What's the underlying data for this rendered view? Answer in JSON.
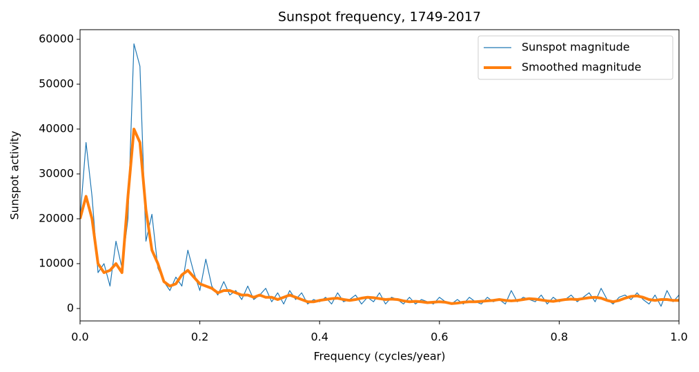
{
  "chart_data": {
    "type": "line",
    "title": "Sunspot frequency, 1749-2017",
    "x_label": "Frequency (cycles/year)",
    "y_label": "Sunspot activity",
    "x": [
      0.0,
      0.01,
      0.02,
      0.03,
      0.04,
      0.05,
      0.06,
      0.07,
      0.08,
      0.09,
      0.1,
      0.11,
      0.12,
      0.13,
      0.14,
      0.15,
      0.16,
      0.17,
      0.18,
      0.19,
      0.2,
      0.21,
      0.22,
      0.23,
      0.24,
      0.25,
      0.26,
      0.27,
      0.28,
      0.29,
      0.3,
      0.31,
      0.32,
      0.33,
      0.34,
      0.35,
      0.36,
      0.37,
      0.38,
      0.39,
      0.4,
      0.41,
      0.42,
      0.43,
      0.44,
      0.45,
      0.46,
      0.47,
      0.48,
      0.49,
      0.5,
      0.51,
      0.52,
      0.53,
      0.54,
      0.55,
      0.56,
      0.57,
      0.58,
      0.59,
      0.6,
      0.61,
      0.62,
      0.63,
      0.64,
      0.65,
      0.66,
      0.67,
      0.68,
      0.69,
      0.7,
      0.71,
      0.72,
      0.73,
      0.74,
      0.75,
      0.76,
      0.77,
      0.78,
      0.79,
      0.8,
      0.81,
      0.82,
      0.83,
      0.84,
      0.85,
      0.86,
      0.87,
      0.88,
      0.89,
      0.9,
      0.91,
      0.92,
      0.93,
      0.94,
      0.95,
      0.96,
      0.97,
      0.98,
      0.99,
      1.0
    ],
    "series": [
      {
        "name": "Sunspot magnitude",
        "color": "#1f77b4",
        "width": 1.2,
        "values": [
          20000,
          37000,
          25000,
          8000,
          10000,
          5000,
          15000,
          9000,
          20000,
          59000,
          54000,
          15000,
          21000,
          9000,
          6000,
          4000,
          7000,
          5000,
          13000,
          8000,
          4000,
          11000,
          5000,
          3000,
          6000,
          3000,
          4000,
          2000,
          5000,
          2000,
          3000,
          4500,
          1500,
          3500,
          1000,
          4000,
          2000,
          3500,
          1000,
          2000,
          1500,
          2500,
          1000,
          3500,
          1500,
          2000,
          3000,
          1000,
          2500,
          1500,
          3500,
          1000,
          2500,
          2000,
          1000,
          2500,
          1000,
          2000,
          1500,
          1000,
          2500,
          1500,
          1000,
          2000,
          1000,
          2500,
          1500,
          1000,
          2500,
          1500,
          2000,
          1000,
          4000,
          1500,
          2500,
          2000,
          1500,
          3000,
          1000,
          2500,
          1500,
          2000,
          3000,
          1500,
          2500,
          3500,
          1500,
          4500,
          2000,
          1000,
          2500,
          3000,
          2000,
          3500,
          2000,
          1000,
          3000,
          500,
          4000,
          1500,
          3000
        ]
      },
      {
        "name": "Smoothed magnitude",
        "color": "#ff7f0e",
        "width": 4,
        "values": [
          20000,
          25000,
          20000,
          10000,
          8000,
          8500,
          10000,
          8000,
          25000,
          40000,
          37000,
          22000,
          13000,
          10000,
          6000,
          5000,
          5500,
          7500,
          8500,
          7000,
          5500,
          5000,
          4500,
          3500,
          4000,
          4000,
          3500,
          3000,
          3000,
          2500,
          3000,
          2500,
          2500,
          2000,
          2500,
          3000,
          2500,
          2000,
          1500,
          1500,
          1800,
          2000,
          2200,
          2300,
          2000,
          1800,
          2000,
          2300,
          2500,
          2400,
          2200,
          2000,
          2100,
          2000,
          1700,
          1500,
          1600,
          1500,
          1300,
          1400,
          1500,
          1400,
          1100,
          1200,
          1400,
          1500,
          1500,
          1600,
          1700,
          1800,
          2000,
          1800,
          1700,
          1800,
          2000,
          2200,
          2100,
          1900,
          1700,
          1600,
          1800,
          2000,
          2100,
          2000,
          2200,
          2400,
          2500,
          2300,
          1800,
          1500,
          1800,
          2300,
          2700,
          2800,
          2500,
          2000,
          1800,
          2000,
          2000,
          1800,
          1800
        ]
      }
    ],
    "xlim": [
      0,
      1
    ],
    "xticks": [
      {
        "value": 0,
        "label": "0.0"
      },
      {
        "value": 0.2,
        "label": "0.2"
      },
      {
        "value": 0.4,
        "label": "0.4"
      },
      {
        "value": 0.6,
        "label": "0.6"
      },
      {
        "value": 0.8,
        "label": "0.8"
      },
      {
        "value": 1,
        "label": "1.0"
      }
    ],
    "ylim": [
      -2770,
      62150
    ],
    "yticks": [
      0,
      10000,
      20000,
      30000,
      40000,
      50000,
      60000
    ],
    "legend": "upper right"
  }
}
